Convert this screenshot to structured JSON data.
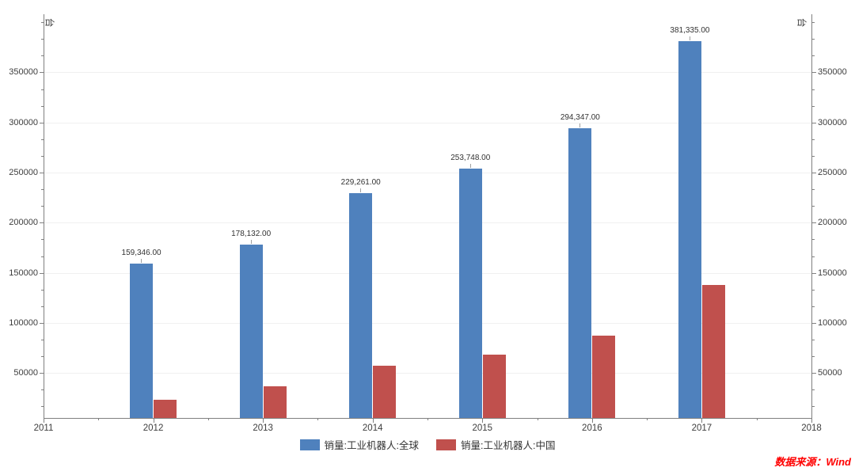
{
  "chart_data": {
    "type": "bar",
    "title": "",
    "unit_label": "台",
    "x_axis": {
      "min": 2011,
      "max": 2018,
      "tick_labels": [
        "2011",
        "2012",
        "2013",
        "2014",
        "2015",
        "2016",
        "2017",
        "2018"
      ]
    },
    "y_axis": {
      "min": 0,
      "tick_step": 50000,
      "tick_labels": [
        "50000",
        "100000",
        "150000",
        "200000",
        "250000",
        "300000",
        "350000"
      ],
      "minor_ticks_per_interval": 2,
      "mirrored_right_axis": true,
      "grid": "horizontal-major-only"
    },
    "categories": [
      2012,
      2013,
      2014,
      2015,
      2016,
      2017
    ],
    "series": [
      {
        "name": "销量:工业机器人:全球",
        "color": "#4f81bd",
        "values": [
          159346,
          178132,
          229261,
          253748,
          294347,
          381335
        ],
        "labels": [
          "159,346.00",
          "178,132.00",
          "229,261.00",
          "253,748.00",
          "294,347.00",
          "381,335.00"
        ]
      },
      {
        "name": "销量:工业机器人:中国",
        "color": "#c0504d",
        "values": [
          23000,
          36600,
          57100,
          68600,
          87000,
          137900
        ],
        "labels": []
      }
    ],
    "legend": [
      "销量:工业机器人:全球",
      "销量:工业机器人:中国"
    ],
    "legend_position": "bottom-center",
    "source_note": "数据来源：Wind"
  },
  "colors": {
    "axis": "#808080",
    "gridline": "#f0f0f0",
    "tick_text": "#3d3d3d",
    "bar_label_text": "#333333",
    "source_note": "#ff0000"
  }
}
